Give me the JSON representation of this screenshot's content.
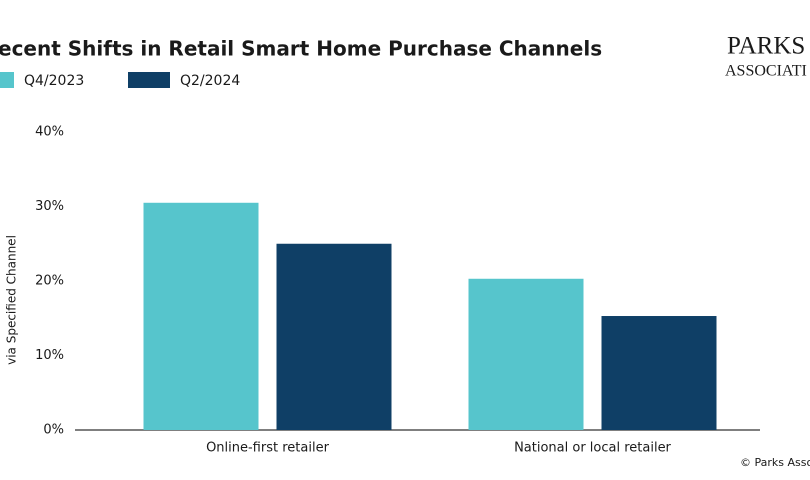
{
  "chart_data": {
    "type": "bar",
    "title": "ecent Shifts in Retail Smart Home Purchase Channels",
    "y_label": "via Specified Channel",
    "logo": [
      "PARKS",
      "ASSOCIATI"
    ],
    "source": "© Parks Asso",
    "categories": [
      "Online-first retailer",
      "National or local retailer"
    ],
    "series": [
      {
        "name": "Q4/2023",
        "color": "#56c5cc",
        "values": [
          30.5,
          20.3
        ]
      },
      {
        "name": "Q2/2024",
        "color": "#0f3f66",
        "values": [
          25,
          15.3
        ]
      }
    ],
    "ylim": [
      0,
      40
    ],
    "yticks": [
      {
        "value": 0,
        "label": "0%"
      },
      {
        "value": 10,
        "label": "10%"
      },
      {
        "value": 20,
        "label": "20%"
      },
      {
        "value": 30,
        "label": "30%"
      },
      {
        "value": 40,
        "label": "40%"
      }
    ],
    "grid": false
  }
}
